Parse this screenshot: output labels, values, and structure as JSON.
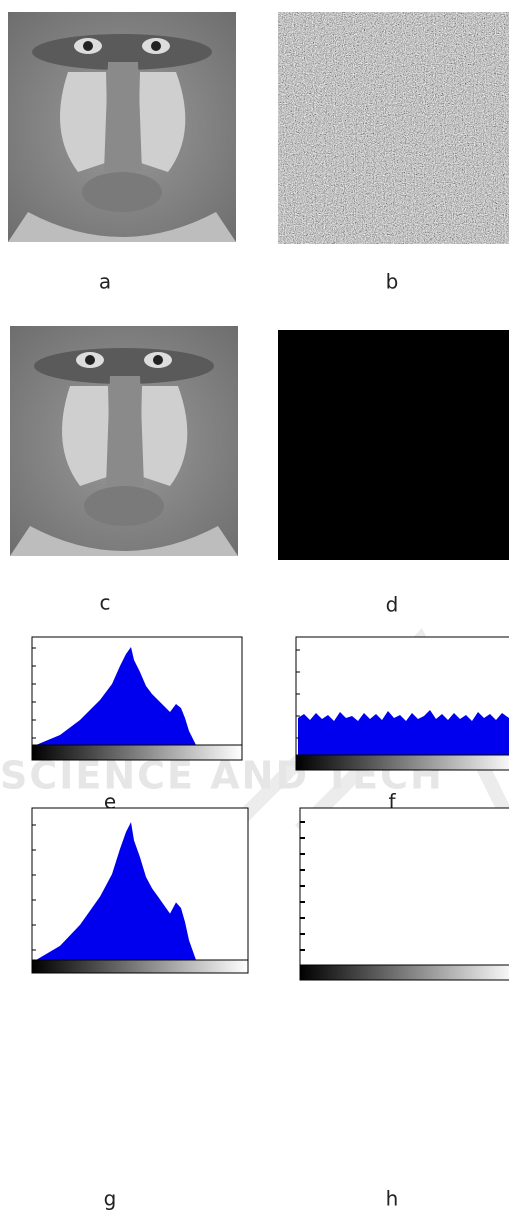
{
  "panels": [
    {
      "label": "a"
    },
    {
      "label": "b"
    },
    {
      "label": "c"
    },
    {
      "label": "d"
    },
    {
      "label": "e"
    },
    {
      "label": "f"
    },
    {
      "label": "g"
    },
    {
      "label": "h"
    }
  ],
  "watermark": "SCIENCE AND TECH"
}
